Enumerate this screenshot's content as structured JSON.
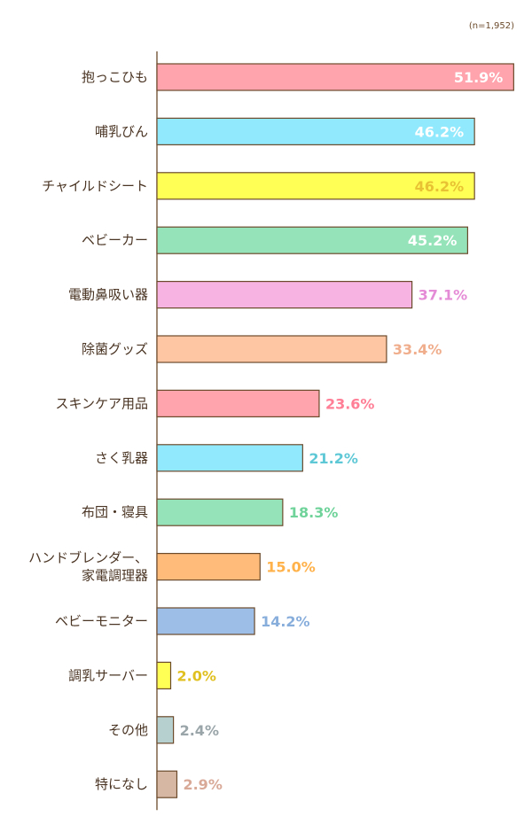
{
  "chart_data": {
    "type": "bar",
    "orientation": "horizontal",
    "note": "(n=1,952)",
    "unit": "%",
    "categories": [
      [
        "抱っこひも"
      ],
      [
        "哺乳びん"
      ],
      [
        "チャイルドシート"
      ],
      [
        "ベビーカー"
      ],
      [
        "電動鼻吸い器"
      ],
      [
        "除菌グッズ"
      ],
      [
        "スキンケア用品"
      ],
      [
        "さく乳器"
      ],
      [
        "布団・寝具"
      ],
      [
        "ハンドブレンダー、",
        "家電調理器"
      ],
      [
        "ベビーモニター"
      ],
      [
        "調乳サーバー"
      ],
      [
        "その他"
      ],
      [
        "特になし"
      ]
    ],
    "values": [
      51.9,
      46.2,
      46.2,
      45.2,
      37.1,
      33.4,
      23.6,
      21.2,
      18.3,
      15.0,
      14.2,
      2.0,
      2.4,
      2.9
    ],
    "labels": [
      "51.9%",
      "46.2%",
      "46.2%",
      "45.2%",
      "37.1%",
      "33.4%",
      "23.6%",
      "21.2%",
      "18.3%",
      "15.0%",
      "14.2%",
      "2.0%",
      "2.4%",
      "2.9%"
    ],
    "bar_colors": [
      "#ffa4ad",
      "#90e9fc",
      "#ffff55",
      "#95e3b8",
      "#f7b3e1",
      "#ffc6a3",
      "#ffa4ad",
      "#90e9fc",
      "#95e3b8",
      "#ffbb7a",
      "#9dbfe7",
      "#ffff55",
      "#b6cfcf",
      "#d6b7a3"
    ],
    "label_colors": [
      "#ffffff",
      "#ffffff",
      "#e8c233",
      "#ffffff",
      "#e58cd6",
      "#f0ae8d",
      "#ff7f97",
      "#5fc8d6",
      "#6fd39a",
      "#ffb14a",
      "#88aedc",
      "#e0c020",
      "#9aa5a9",
      "#d9a998"
    ],
    "label_inside": [
      true,
      true,
      true,
      true,
      false,
      false,
      false,
      false,
      false,
      false,
      false,
      false,
      false,
      false
    ],
    "xlim": [
      0,
      52.5
    ],
    "grid": false,
    "legend": "none"
  }
}
